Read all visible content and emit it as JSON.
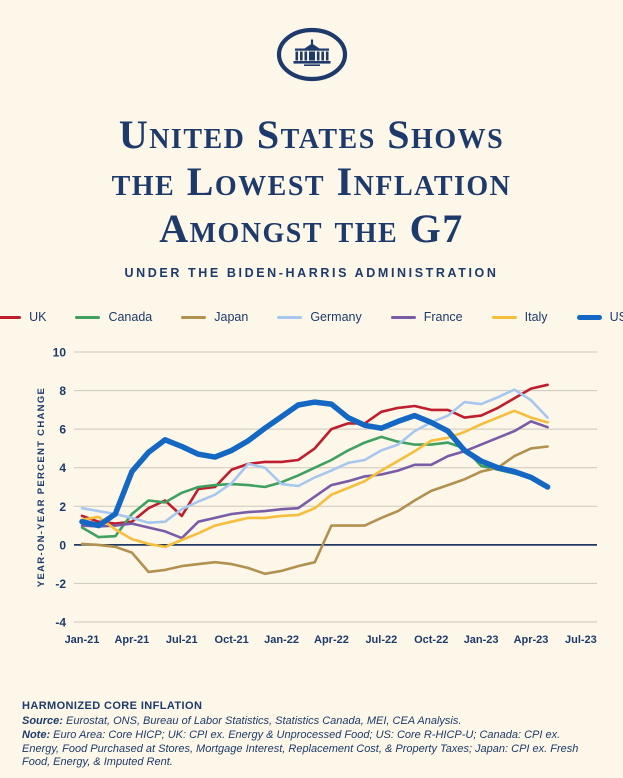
{
  "page": {
    "background": "#FCF7E9",
    "navy": "#1E3A6B",
    "grid_color": "#CBC7BA",
    "zero_line_color": "#1F3864"
  },
  "header": {
    "logo_name": "white-house-logo",
    "title_lines": [
      "United States Shows",
      "the Lowest Inflation",
      "Amongst the G7"
    ],
    "subtitle": "UNDER THE BIDEN-HARRIS ADMINISTRATION"
  },
  "chart_data": {
    "type": "line",
    "title": "United States Shows the Lowest Inflation Amongst the G7",
    "xlabel": "",
    "ylabel": "YEAR-ON-YEAR PERCENT CHANGE",
    "ylim": [
      -4,
      10
    ],
    "yticks": [
      10,
      8,
      6,
      4,
      2,
      0,
      -2,
      -4
    ],
    "grid": true,
    "legend_position": "top",
    "x": [
      "Jan-21",
      "Feb-21",
      "Mar-21",
      "Apr-21",
      "May-21",
      "Jun-21",
      "Jul-21",
      "Aug-21",
      "Sep-21",
      "Oct-21",
      "Nov-21",
      "Dec-21",
      "Jan-22",
      "Feb-22",
      "Mar-22",
      "Apr-22",
      "May-22",
      "Jun-22",
      "Jul-22",
      "Aug-22",
      "Sep-22",
      "Oct-22",
      "Nov-22",
      "Dec-22",
      "Jan-23",
      "Feb-23",
      "Mar-23",
      "Apr-23",
      "May-23"
    ],
    "x_tick_labels": [
      "Jan-21",
      "Apr-21",
      "Jul-21",
      "Oct-21",
      "Jan-22",
      "Apr-22",
      "Jul-22",
      "Oct-22",
      "Jan-23",
      "Apr-23",
      "Jul-23"
    ],
    "x_axis_months": 31,
    "series": [
      {
        "name": "UK",
        "color": "#BE1E2D",
        "width": 2.6,
        "values": [
          1.5,
          1.2,
          1.1,
          1.2,
          1.9,
          2.3,
          1.5,
          2.9,
          3.0,
          3.9,
          4.2,
          4.3,
          4.3,
          4.4,
          5.0,
          6.0,
          6.3,
          6.3,
          6.9,
          7.1,
          7.2,
          7.0,
          7.0,
          6.6,
          6.7,
          7.1,
          7.6,
          8.1,
          8.3
        ]
      },
      {
        "name": "Canada",
        "color": "#3FA05F",
        "width": 2.6,
        "values": [
          0.9,
          0.4,
          0.45,
          1.6,
          2.3,
          2.2,
          2.7,
          3.0,
          3.1,
          3.15,
          3.1,
          3.0,
          3.25,
          3.6,
          4.0,
          4.4,
          4.9,
          5.3,
          5.6,
          5.35,
          5.2,
          5.2,
          5.3,
          5.0,
          4.1,
          3.9,
          3.7,
          3.5,
          null
        ]
      },
      {
        "name": "Japan",
        "color": "#B2914F",
        "width": 2.6,
        "values": [
          0.05,
          0.0,
          -0.1,
          -0.4,
          -1.4,
          -1.3,
          -1.1,
          -1.0,
          -0.9,
          -1.0,
          -1.2,
          -1.5,
          -1.35,
          -1.1,
          -0.9,
          1.0,
          1.0,
          1.0,
          1.4,
          1.75,
          2.3,
          2.8,
          3.1,
          3.4,
          3.8,
          4.0,
          4.6,
          5.0,
          5.1
        ]
      },
      {
        "name": "Germany",
        "color": "#A7C7F0",
        "width": 2.6,
        "values": [
          1.9,
          1.75,
          1.6,
          1.4,
          1.15,
          1.2,
          1.85,
          2.25,
          2.6,
          3.2,
          4.2,
          4.0,
          3.15,
          3.05,
          3.5,
          3.85,
          4.25,
          4.4,
          4.9,
          5.2,
          5.9,
          6.35,
          6.7,
          7.4,
          7.3,
          7.65,
          8.05,
          7.5,
          6.6
        ]
      },
      {
        "name": "France",
        "color": "#7A5BA8",
        "width": 2.6,
        "values": [
          1.0,
          0.95,
          1.0,
          1.1,
          0.9,
          0.7,
          0.35,
          1.2,
          1.4,
          1.6,
          1.7,
          1.75,
          1.85,
          1.9,
          2.5,
          3.1,
          3.3,
          3.55,
          3.65,
          3.85,
          4.15,
          4.15,
          4.6,
          4.85,
          5.2,
          5.55,
          5.9,
          6.4,
          6.1
        ]
      },
      {
        "name": "Italy",
        "color": "#F5BE3B",
        "width": 2.6,
        "values": [
          1.3,
          1.45,
          0.8,
          0.3,
          0.05,
          -0.1,
          0.25,
          0.6,
          1.0,
          1.2,
          1.4,
          1.4,
          1.5,
          1.55,
          1.9,
          2.6,
          2.95,
          3.3,
          3.85,
          4.35,
          4.85,
          5.4,
          5.55,
          5.85,
          6.25,
          6.6,
          6.95,
          6.6,
          6.35
        ]
      },
      {
        "name": "US",
        "color": "#1467C2",
        "width": 5.5,
        "values": [
          1.2,
          1.0,
          1.6,
          3.8,
          4.8,
          5.45,
          5.1,
          4.7,
          4.55,
          4.9,
          5.4,
          6.05,
          6.65,
          7.25,
          7.4,
          7.3,
          6.6,
          6.2,
          6.05,
          6.4,
          6.7,
          6.35,
          5.9,
          4.9,
          4.35,
          4.0,
          3.8,
          3.5,
          3.0
        ]
      }
    ]
  },
  "footer": {
    "heading": "HARMONIZED CORE INFLATION",
    "source_label": "Source:",
    "source_text": "Eurostat, ONS, Bureau of Labor Statistics, Statistics Canada, MEI, CEA Analysis.",
    "note_label": "Note:",
    "note_text": "Euro Area: Core HICP; UK: CPI ex. Energy & Unprocessed Food; US: Core R-HICP-U; Canada: CPI ex. Energy, Food Purchased at Stores, Mortgage Interest, Replacement Cost, & Property Taxes; Japan: CPI ex. Fresh Food, Energy, & Imputed Rent."
  }
}
